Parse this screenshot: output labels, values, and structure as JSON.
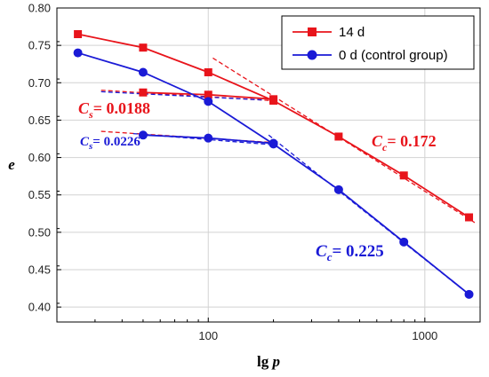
{
  "chart_data": {
    "type": "line",
    "xlabel_base": "lg",
    "xlabel_var": "p",
    "ylabel": "e",
    "x_scale": "log",
    "xlim": [
      20,
      1800
    ],
    "ylim": [
      0.38,
      0.8
    ],
    "grid": true,
    "legend_position": "top-right",
    "x_ticks": [
      100,
      1000
    ],
    "x_tick_labels": [
      "100",
      "1000"
    ],
    "y_ticks": [
      0.4,
      0.45,
      0.5,
      0.55,
      0.6,
      0.65,
      0.7,
      0.75,
      0.8
    ],
    "y_tick_labels": [
      "0.40",
      "0.45",
      "0.50",
      "0.55",
      "0.60",
      "0.65",
      "0.70",
      "0.75",
      "0.80"
    ],
    "series": [
      {
        "name": "14 d",
        "color": "#e8141b",
        "marker": "square",
        "segments": [
          [
            [
              25,
              0.765
            ],
            [
              50,
              0.747
            ],
            [
              100,
              0.714
            ],
            [
              200,
              0.676
            ],
            [
              400,
              0.628
            ],
            [
              800,
              0.576
            ],
            [
              1600,
              0.52
            ]
          ],
          [
            [
              50,
              0.687
            ],
            [
              100,
              0.684
            ],
            [
              200,
              0.678
            ]
          ]
        ]
      },
      {
        "name": "0 d (control group)",
        "color": "#1a1ad6",
        "marker": "circle",
        "segments": [
          [
            [
              25,
              0.74
            ],
            [
              50,
              0.714
            ],
            [
              100,
              0.675
            ],
            [
              200,
              0.618
            ],
            [
              400,
              0.557
            ],
            [
              800,
              0.487
            ],
            [
              1600,
              0.417
            ]
          ],
          [
            [
              50,
              0.63
            ],
            [
              100,
              0.626
            ],
            [
              200,
              0.619
            ]
          ]
        ]
      }
    ],
    "fit_lines": [
      {
        "color": "#e8141b",
        "x": [
          105,
          1700
        ],
        "y": [
          0.733,
          0.513
        ]
      },
      {
        "color": "#e8141b",
        "x": [
          32,
          200
        ],
        "y": [
          0.69,
          0.676
        ]
      },
      {
        "color": "#e8141b",
        "x": [
          32,
          200
        ],
        "y": [
          0.635,
          0.62
        ]
      },
      {
        "color": "#1a1ad6",
        "x": [
          190,
          1550
        ],
        "y": [
          0.63,
          0.42
        ]
      },
      {
        "color": "#1a1ad6",
        "x": [
          32,
          180
        ],
        "y": [
          0.688,
          0.677
        ]
      },
      {
        "color": "#1a1ad6",
        "x": [
          45,
          200
        ],
        "y": [
          0.632,
          0.617
        ]
      }
    ],
    "annotations": [
      {
        "symbol": "C",
        "sub": "s",
        "value": "= 0.0188",
        "color": "#e8141b"
      },
      {
        "symbol": "C",
        "sub": "s",
        "value": "= 0.0226",
        "color": "#1a1ad6"
      },
      {
        "symbol": "C",
        "sub": "c",
        "value": "= 0.172",
        "color": "#e8141b"
      },
      {
        "symbol": "C",
        "sub": "c",
        "value": "= 0.225",
        "color": "#1a1ad6"
      }
    ]
  }
}
